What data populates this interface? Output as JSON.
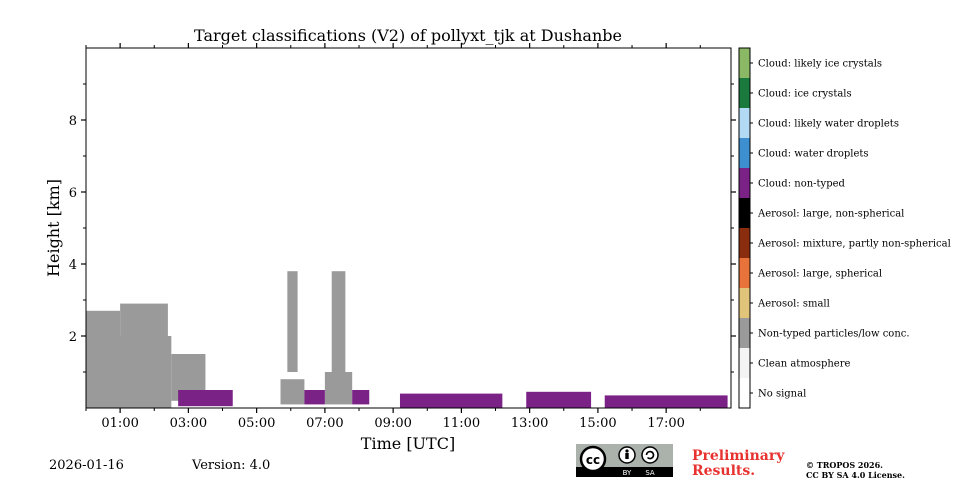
{
  "chart_data": {
    "type": "heatmap",
    "title": "Target classifications (V2) of pollyxt_tjk at Dushanbe",
    "xlabel": "Time [UTC]",
    "ylabel": "Height [km]",
    "xlim_hours": [
      0,
      18.9
    ],
    "ylim_km": [
      0,
      10
    ],
    "x_ticks": [
      {
        "hour": 1,
        "label": "01:00"
      },
      {
        "hour": 3,
        "label": "03:00"
      },
      {
        "hour": 5,
        "label": "05:00"
      },
      {
        "hour": 7,
        "label": "07:00"
      },
      {
        "hour": 9,
        "label": "09:00"
      },
      {
        "hour": 11,
        "label": "11:00"
      },
      {
        "hour": 13,
        "label": "13:00"
      },
      {
        "hour": 15,
        "label": "15:00"
      },
      {
        "hour": 17,
        "label": "17:00"
      }
    ],
    "y_ticks": [
      {
        "km": 2,
        "label": "2"
      },
      {
        "km": 4,
        "label": "4"
      },
      {
        "km": 6,
        "label": "6"
      },
      {
        "km": 8,
        "label": "8"
      }
    ],
    "legend_position": "right",
    "classes": [
      {
        "label": "Cloud: likely ice crystals",
        "color": "#8bb865"
      },
      {
        "label": "Cloud: ice crystals",
        "color": "#1a7a3e"
      },
      {
        "label": "Cloud: likely water droplets",
        "color": "#b3daf5"
      },
      {
        "label": "Cloud: water droplets",
        "color": "#3d8fcf"
      },
      {
        "label": "Cloud: non-typed",
        "color": "#7b2287"
      },
      {
        "label": "Aerosol: large, non-spherical",
        "color": "#000000"
      },
      {
        "label": "Aerosol: mixture, partly non-spherical",
        "color": "#8a2c0e"
      },
      {
        "label": "Aerosol: large, spherical",
        "color": "#e8733a"
      },
      {
        "label": "Aerosol: small",
        "color": "#e0c47a"
      },
      {
        "label": "Non-typed particles/low conc.",
        "color": "#9a9a9a"
      },
      {
        "label": "Clean atmosphere",
        "color": "#f4f4f4"
      },
      {
        "label": "No signal",
        "color": "#ffffff"
      }
    ],
    "layers": [
      {
        "class": "Non-typed particles/low conc.",
        "t_start": 0.0,
        "t_end": 2.5,
        "h_bottom": 0.0,
        "h_top": 2.0
      },
      {
        "class": "Non-typed particles/low conc.",
        "t_start": 0.0,
        "t_end": 1.0,
        "h_bottom": 2.0,
        "h_top": 2.7
      },
      {
        "class": "Non-typed particles/low conc.",
        "t_start": 1.0,
        "t_end": 2.4,
        "h_bottom": 2.0,
        "h_top": 2.9
      },
      {
        "class": "Non-typed particles/low conc.",
        "t_start": 2.5,
        "t_end": 3.5,
        "h_bottom": 0.2,
        "h_top": 1.5
      },
      {
        "class": "Non-typed particles/low conc.",
        "t_start": 5.7,
        "t_end": 6.4,
        "h_bottom": 0.1,
        "h_top": 0.8
      },
      {
        "class": "Non-typed particles/low conc.",
        "t_start": 7.0,
        "t_end": 7.8,
        "h_bottom": 0.1,
        "h_top": 1.0
      },
      {
        "class": "Non-typed particles/low conc.",
        "t_start": 7.2,
        "t_end": 7.6,
        "h_bottom": 1.0,
        "h_top": 3.8
      },
      {
        "class": "Non-typed particles/low conc.",
        "t_start": 5.9,
        "t_end": 6.2,
        "h_bottom": 1.0,
        "h_top": 3.8
      },
      {
        "class": "Cloud: non-typed",
        "t_start": 2.7,
        "t_end": 4.3,
        "h_bottom": 0.05,
        "h_top": 0.5
      },
      {
        "class": "Cloud: non-typed",
        "t_start": 6.4,
        "t_end": 7.0,
        "h_bottom": 0.1,
        "h_top": 0.5
      },
      {
        "class": "Cloud: non-typed",
        "t_start": 7.8,
        "t_end": 8.3,
        "h_bottom": 0.1,
        "h_top": 0.5
      },
      {
        "class": "Cloud: non-typed",
        "t_start": 9.2,
        "t_end": 12.2,
        "h_bottom": 0.0,
        "h_top": 0.4
      },
      {
        "class": "Cloud: non-typed",
        "t_start": 12.9,
        "t_end": 14.8,
        "h_bottom": 0.0,
        "h_top": 0.45
      },
      {
        "class": "Cloud: non-typed",
        "t_start": 15.2,
        "t_end": 18.8,
        "h_bottom": 0.0,
        "h_top": 0.35
      }
    ]
  },
  "footer": {
    "date": "2026-01-16",
    "version": "Version: 4.0",
    "preliminary_line1": "Preliminary",
    "preliminary_line2": "Results.",
    "copyright_line1": "© TROPOS 2026.",
    "copyright_line2": "CC BY SA 4.0 License.",
    "license_badge": {
      "cc": "cc",
      "by": "BY",
      "sa": "SA"
    }
  }
}
